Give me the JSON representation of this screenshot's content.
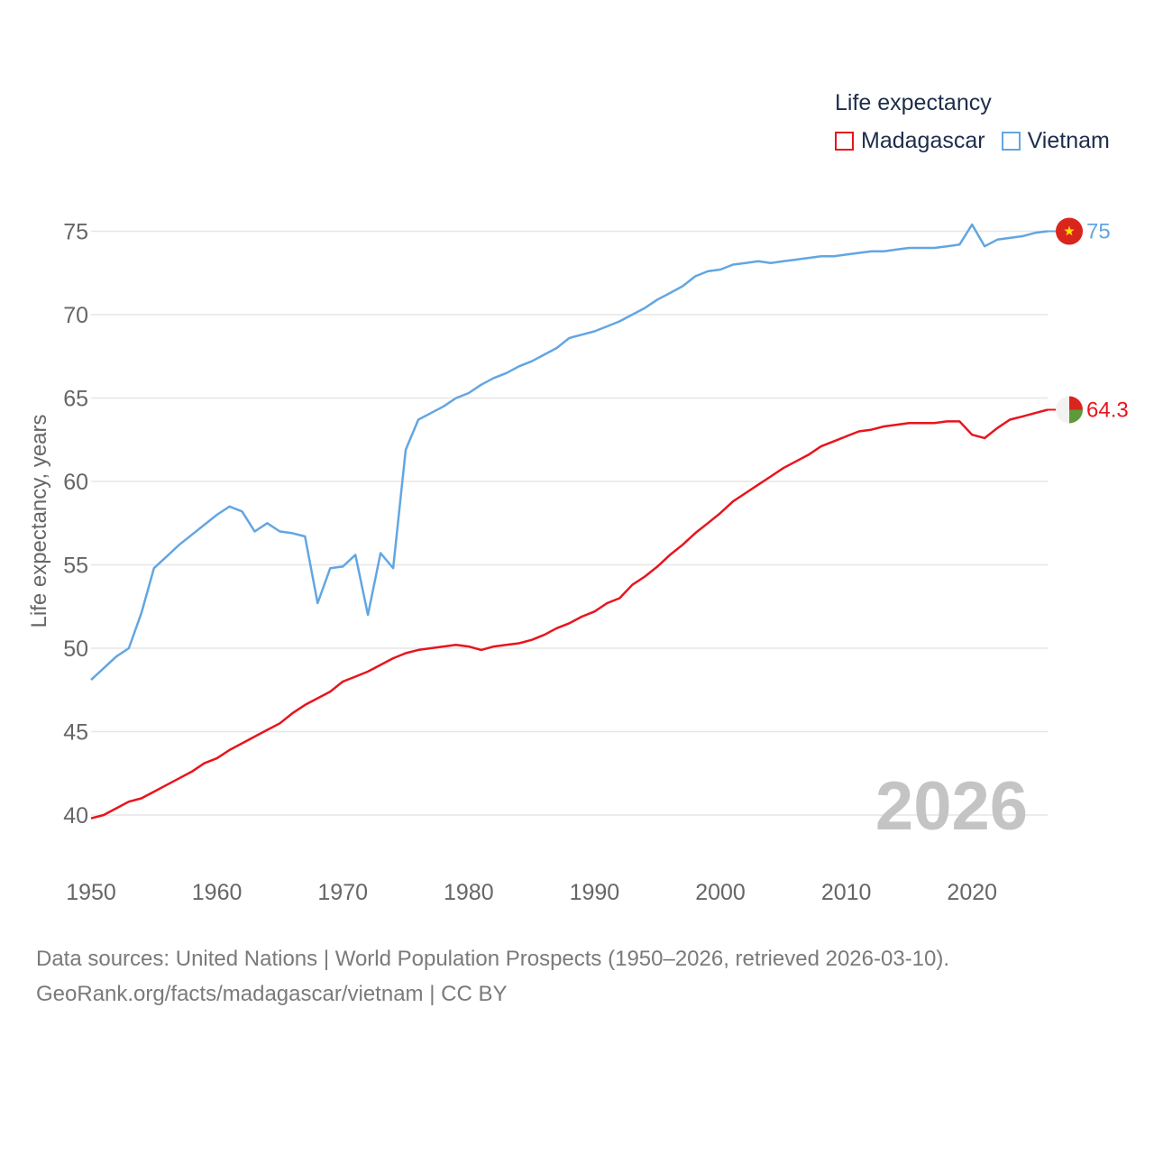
{
  "legend": {
    "title": "Life expectancy",
    "madagascar_label": "Madagascar",
    "vietnam_label": "Vietnam"
  },
  "source": {
    "line1": "Data sources: United Nations | World Population Prospects (1950–2026, retrieved 2026-03-10).",
    "line2": "GeoRank.org/facts/madagascar/vietnam | CC BY"
  },
  "colors": {
    "madagascar": "#e8141c",
    "vietnam": "#62a6e2",
    "grid": "#e6e6e6",
    "tick_text": "#666666",
    "year_watermark": "#c4c4c4",
    "flag_red": "#da251d",
    "flag_star": "#ffdf00",
    "flag_green": "#5c9a3a",
    "flag_white": "#f2f2f2"
  },
  "chart_data": {
    "type": "line",
    "title": "Life expectancy",
    "xlabel": "",
    "ylabel": "Life expectancy, years",
    "xlim": [
      1950,
      2026
    ],
    "ylim": [
      37.5,
      77
    ],
    "xticks": [
      1950,
      1960,
      1970,
      1980,
      1990,
      2000,
      2010,
      2020
    ],
    "yticks": [
      40,
      45,
      50,
      55,
      60,
      65,
      70,
      75
    ],
    "year_label": "2026",
    "legend_position": "top-right",
    "x": [
      1950,
      1951,
      1952,
      1953,
      1954,
      1955,
      1956,
      1957,
      1958,
      1959,
      1960,
      1961,
      1962,
      1963,
      1964,
      1965,
      1966,
      1967,
      1968,
      1969,
      1970,
      1971,
      1972,
      1973,
      1974,
      1975,
      1976,
      1977,
      1978,
      1979,
      1980,
      1981,
      1982,
      1983,
      1984,
      1985,
      1986,
      1987,
      1988,
      1989,
      1990,
      1991,
      1992,
      1993,
      1994,
      1995,
      1996,
      1997,
      1998,
      1999,
      2000,
      2001,
      2002,
      2003,
      2004,
      2005,
      2006,
      2007,
      2008,
      2009,
      2010,
      2011,
      2012,
      2013,
      2014,
      2015,
      2016,
      2017,
      2018,
      2019,
      2020,
      2021,
      2022,
      2023,
      2024,
      2025,
      2026
    ],
    "series": [
      {
        "name": "Madagascar",
        "color": "#e8141c",
        "end_label": "64.3",
        "values": [
          39.8,
          40.0,
          40.4,
          40.8,
          41.0,
          41.4,
          41.8,
          42.2,
          42.6,
          43.1,
          43.4,
          43.9,
          44.3,
          44.7,
          45.1,
          45.5,
          46.1,
          46.6,
          47.0,
          47.4,
          48.0,
          48.3,
          48.6,
          49.0,
          49.4,
          49.7,
          49.9,
          50.0,
          50.1,
          50.2,
          50.1,
          49.9,
          50.1,
          50.2,
          50.3,
          50.5,
          50.8,
          51.2,
          51.5,
          51.9,
          52.2,
          52.7,
          53.0,
          53.8,
          54.3,
          54.9,
          55.6,
          56.2,
          56.9,
          57.5,
          58.1,
          58.8,
          59.3,
          59.8,
          60.3,
          60.8,
          61.2,
          61.6,
          62.1,
          62.4,
          62.7,
          63.0,
          63.1,
          63.3,
          63.4,
          63.5,
          63.5,
          63.5,
          63.6,
          63.6,
          62.8,
          62.6,
          63.2,
          63.7,
          63.9,
          64.1,
          64.3
        ]
      },
      {
        "name": "Vietnam",
        "color": "#62a6e2",
        "end_label": "75",
        "values": [
          48.1,
          48.8,
          49.5,
          50.0,
          52.1,
          54.8,
          55.5,
          56.2,
          56.8,
          57.4,
          58.0,
          58.5,
          58.2,
          57.0,
          57.5,
          57.0,
          56.9,
          56.7,
          52.7,
          54.8,
          54.9,
          55.6,
          52.0,
          55.7,
          54.8,
          61.9,
          63.7,
          64.1,
          64.5,
          65.0,
          65.3,
          65.8,
          66.2,
          66.5,
          66.9,
          67.2,
          67.6,
          68.0,
          68.6,
          68.8,
          69.0,
          69.3,
          69.6,
          70.0,
          70.4,
          70.9,
          71.3,
          71.7,
          72.3,
          72.6,
          72.7,
          73.0,
          73.1,
          73.2,
          73.1,
          73.2,
          73.3,
          73.4,
          73.5,
          73.5,
          73.6,
          73.7,
          73.8,
          73.8,
          73.9,
          74.0,
          74.0,
          74.0,
          74.1,
          74.2,
          75.4,
          74.1,
          74.5,
          74.6,
          74.7,
          74.9,
          75.0
        ]
      }
    ]
  }
}
